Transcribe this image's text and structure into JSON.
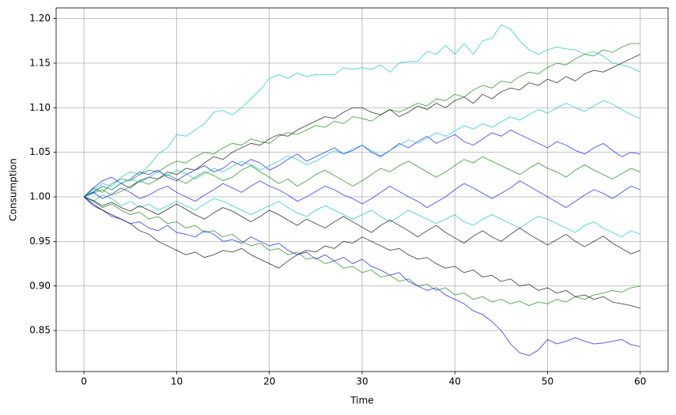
{
  "chart_data": {
    "type": "line",
    "xlabel": "Time",
    "ylabel": "Consumption",
    "xlim": [
      -3,
      63
    ],
    "ylim": [
      0.804,
      1.212
    ],
    "grid": true,
    "alpha": 0.7,
    "xticks": [
      0,
      10,
      20,
      30,
      40,
      50,
      60
    ],
    "yticks": [
      {
        "value": 0.85,
        "label": "0.85"
      },
      {
        "value": 0.9,
        "label": "0.90"
      },
      {
        "value": 0.95,
        "label": "0.95"
      },
      {
        "value": 1.0,
        "label": "1.00"
      },
      {
        "value": 1.05,
        "label": "1.05"
      },
      {
        "value": 1.1,
        "label": "1.10"
      },
      {
        "value": 1.15,
        "label": "1.15"
      },
      {
        "value": 1.2,
        "label": "1.20"
      }
    ],
    "x": [
      0,
      1,
      2,
      3,
      4,
      5,
      6,
      7,
      8,
      9,
      10,
      11,
      12,
      13,
      14,
      15,
      16,
      17,
      18,
      19,
      20,
      21,
      22,
      23,
      24,
      25,
      26,
      27,
      28,
      29,
      30,
      31,
      32,
      33,
      34,
      35,
      36,
      37,
      38,
      39,
      40,
      41,
      42,
      43,
      44,
      45,
      46,
      47,
      48,
      49,
      50,
      51,
      52,
      53,
      54,
      55,
      56,
      57,
      58,
      59,
      60
    ],
    "series": [
      {
        "color": "#00bfbf",
        "values": [
          1.0,
          1.008,
          1.015,
          1.012,
          1.022,
          1.028,
          1.025,
          1.035,
          1.048,
          1.055,
          1.07,
          1.068,
          1.075,
          1.082,
          1.095,
          1.097,
          1.092,
          1.1,
          1.11,
          1.12,
          1.133,
          1.137,
          1.133,
          1.139,
          1.135,
          1.137,
          1.137,
          1.137,
          1.145,
          1.143,
          1.145,
          1.143,
          1.148,
          1.14,
          1.15,
          1.152,
          1.152,
          1.163,
          1.16,
          1.17,
          1.16,
          1.172,
          1.16,
          1.175,
          1.178,
          1.193,
          1.188,
          1.175,
          1.165,
          1.16,
          1.165,
          1.168,
          1.166,
          1.165,
          1.16,
          1.163,
          1.158,
          1.15,
          1.148,
          1.145,
          1.14
        ]
      },
      {
        "color": "#0000ff",
        "values": [
          1.0,
          0.99,
          0.985,
          0.978,
          0.975,
          0.97,
          0.972,
          0.965,
          0.962,
          0.968,
          0.96,
          0.958,
          0.955,
          0.962,
          0.958,
          0.95,
          0.952,
          0.948,
          0.955,
          0.95,
          0.945,
          0.948,
          0.94,
          0.935,
          0.938,
          0.93,
          0.935,
          0.928,
          0.932,
          0.925,
          0.93,
          0.922,
          0.918,
          0.912,
          0.915,
          0.905,
          0.9,
          0.895,
          0.898,
          0.89,
          0.885,
          0.88,
          0.872,
          0.868,
          0.86,
          0.85,
          0.835,
          0.825,
          0.822,
          0.828,
          0.84,
          0.835,
          0.838,
          0.842,
          0.838,
          0.835,
          0.836,
          0.838,
          0.84,
          0.834,
          0.832
        ]
      },
      {
        "color": "#008000",
        "values": [
          1.0,
          1.01,
          1.005,
          1.015,
          1.02,
          1.018,
          1.025,
          1.03,
          1.028,
          1.035,
          1.04,
          1.038,
          1.045,
          1.05,
          1.048,
          1.055,
          1.06,
          1.058,
          1.065,
          1.062,
          1.06,
          1.068,
          1.072,
          1.07,
          1.075,
          1.08,
          1.078,
          1.085,
          1.082,
          1.09,
          1.088,
          1.085,
          1.092,
          1.098,
          1.095,
          1.1,
          1.105,
          1.102,
          1.11,
          1.108,
          1.115,
          1.112,
          1.12,
          1.125,
          1.122,
          1.13,
          1.128,
          1.135,
          1.14,
          1.138,
          1.145,
          1.15,
          1.148,
          1.155,
          1.16,
          1.158,
          1.165,
          1.162,
          1.168,
          1.172,
          1.172
        ]
      },
      {
        "color": "#000000",
        "values": [
          1.0,
          1.005,
          1.012,
          1.008,
          1.015,
          1.01,
          1.018,
          1.022,
          1.02,
          1.028,
          1.025,
          1.032,
          1.03,
          1.038,
          1.045,
          1.042,
          1.05,
          1.055,
          1.06,
          1.058,
          1.065,
          1.07,
          1.068,
          1.075,
          1.08,
          1.085,
          1.09,
          1.088,
          1.095,
          1.1,
          1.1,
          1.095,
          1.092,
          1.098,
          1.09,
          1.095,
          1.102,
          1.098,
          1.105,
          1.1,
          1.108,
          1.112,
          1.105,
          1.115,
          1.11,
          1.118,
          1.122,
          1.12,
          1.128,
          1.125,
          1.132,
          1.128,
          1.135,
          1.13,
          1.138,
          1.142,
          1.14,
          1.145,
          1.15,
          1.155,
          1.16
        ]
      },
      {
        "color": "#008000",
        "values": [
          1.0,
          0.995,
          0.988,
          0.992,
          0.985,
          0.98,
          0.983,
          0.975,
          0.978,
          0.97,
          0.972,
          0.965,
          0.968,
          0.96,
          0.962,
          0.955,
          0.958,
          0.95,
          0.945,
          0.948,
          0.94,
          0.942,
          0.935,
          0.938,
          0.93,
          0.932,
          0.925,
          0.928,
          0.92,
          0.922,
          0.915,
          0.918,
          0.91,
          0.912,
          0.905,
          0.908,
          0.9,
          0.902,
          0.895,
          0.898,
          0.89,
          0.892,
          0.885,
          0.888,
          0.882,
          0.885,
          0.88,
          0.883,
          0.878,
          0.882,
          0.88,
          0.885,
          0.882,
          0.888,
          0.885,
          0.89,
          0.892,
          0.895,
          0.893,
          0.898,
          0.9
        ]
      },
      {
        "color": "#000000",
        "values": [
          1.0,
          0.992,
          0.985,
          0.98,
          0.975,
          0.97,
          0.962,
          0.958,
          0.95,
          0.945,
          0.94,
          0.935,
          0.938,
          0.932,
          0.935,
          0.94,
          0.938,
          0.942,
          0.935,
          0.93,
          0.925,
          0.92,
          0.928,
          0.935,
          0.94,
          0.938,
          0.945,
          0.942,
          0.95,
          0.948,
          0.955,
          0.95,
          0.945,
          0.94,
          0.942,
          0.935,
          0.93,
          0.932,
          0.925,
          0.92,
          0.922,
          0.915,
          0.918,
          0.91,
          0.912,
          0.905,
          0.908,
          0.9,
          0.902,
          0.895,
          0.898,
          0.892,
          0.895,
          0.888,
          0.89,
          0.885,
          0.888,
          0.882,
          0.88,
          0.878,
          0.875
        ]
      },
      {
        "color": "#0000ff",
        "values": [
          1.0,
          1.01,
          1.018,
          1.022,
          1.015,
          1.02,
          1.028,
          1.025,
          1.03,
          1.022,
          1.018,
          1.025,
          1.03,
          1.035,
          1.028,
          1.032,
          1.04,
          1.035,
          1.042,
          1.038,
          1.03,
          1.035,
          1.042,
          1.048,
          1.04,
          1.045,
          1.05,
          1.055,
          1.048,
          1.052,
          1.058,
          1.05,
          1.045,
          1.052,
          1.06,
          1.055,
          1.062,
          1.068,
          1.06,
          1.065,
          1.07,
          1.062,
          1.058,
          1.065,
          1.072,
          1.068,
          1.075,
          1.07,
          1.065,
          1.06,
          1.055,
          1.062,
          1.058,
          1.052,
          1.048,
          1.055,
          1.06,
          1.052,
          1.045,
          1.05,
          1.048
        ]
      },
      {
        "color": "#00bfbf",
        "values": [
          1.0,
          0.995,
          1.002,
          0.998,
          0.99,
          0.995,
          0.988,
          0.992,
          0.985,
          0.99,
          0.995,
          0.99,
          0.985,
          0.992,
          0.998,
          0.995,
          0.99,
          0.985,
          0.98,
          0.985,
          0.99,
          0.995,
          0.988,
          0.982,
          0.978,
          0.985,
          0.99,
          0.985,
          0.98,
          0.975,
          0.98,
          0.985,
          0.978,
          0.972,
          0.978,
          0.985,
          0.98,
          0.975,
          0.97,
          0.975,
          0.98,
          0.972,
          0.968,
          0.975,
          0.98,
          0.975,
          0.97,
          0.965,
          0.972,
          0.978,
          0.975,
          0.97,
          0.965,
          0.96,
          0.968,
          0.972,
          0.965,
          0.96,
          0.955,
          0.962,
          0.958
        ]
      },
      {
        "color": "#0000ff",
        "values": [
          1.0,
          1.005,
          0.998,
          1.003,
          1.01,
          1.005,
          0.998,
          1.002,
          1.008,
          1.012,
          1.005,
          1.0,
          0.995,
          1.002,
          1.008,
          1.015,
          1.01,
          1.005,
          1.012,
          1.018,
          1.012,
          1.008,
          1.002,
          0.995,
          1.0,
          1.006,
          1.012,
          1.008,
          1.002,
          0.998,
          0.992,
          0.998,
          1.005,
          1.012,
          1.006,
          1.0,
          0.995,
          0.988,
          0.994,
          1.0,
          1.008,
          1.015,
          1.01,
          1.004,
          0.998,
          1.004,
          1.01,
          1.018,
          1.012,
          1.006,
          1.0,
          0.994,
          0.988,
          0.995,
          1.002,
          1.008,
          1.004,
          0.998,
          1.005,
          1.012,
          1.008
        ]
      },
      {
        "color": "#008000",
        "values": [
          1.0,
          1.004,
          1.008,
          1.002,
          1.006,
          1.012,
          1.018,
          1.014,
          1.02,
          1.025,
          1.02,
          1.015,
          1.022,
          1.028,
          1.024,
          1.018,
          1.022,
          1.03,
          1.035,
          1.028,
          1.022,
          1.015,
          1.02,
          1.012,
          1.018,
          1.025,
          1.03,
          1.024,
          1.018,
          1.012,
          1.018,
          1.025,
          1.032,
          1.028,
          1.035,
          1.04,
          1.034,
          1.028,
          1.022,
          1.028,
          1.035,
          1.042,
          1.038,
          1.045,
          1.04,
          1.035,
          1.03,
          1.025,
          1.032,
          1.038,
          1.032,
          1.028,
          1.022,
          1.03,
          1.036,
          1.03,
          1.025,
          1.02,
          1.026,
          1.032,
          1.028
        ]
      },
      {
        "color": "#000000",
        "values": [
          1.0,
          0.996,
          0.99,
          0.994,
          0.988,
          0.984,
          0.99,
          0.985,
          0.98,
          0.986,
          0.992,
          0.986,
          0.98,
          0.975,
          0.982,
          0.988,
          0.984,
          0.978,
          0.972,
          0.978,
          0.985,
          0.98,
          0.974,
          0.968,
          0.975,
          0.97,
          0.965,
          0.972,
          0.978,
          0.972,
          0.966,
          0.96,
          0.968,
          0.974,
          0.968,
          0.962,
          0.955,
          0.962,
          0.968,
          0.96,
          0.954,
          0.948,
          0.956,
          0.962,
          0.955,
          0.95,
          0.958,
          0.965,
          0.958,
          0.952,
          0.946,
          0.952,
          0.958,
          0.95,
          0.944,
          0.95,
          0.956,
          0.948,
          0.942,
          0.936,
          0.94
        ]
      },
      {
        "color": "#00bfbf",
        "values": [
          1.0,
          1.006,
          1.012,
          1.008,
          1.015,
          1.02,
          1.016,
          1.022,
          1.028,
          1.024,
          1.03,
          1.026,
          1.02,
          1.026,
          1.032,
          1.028,
          1.034,
          1.04,
          1.036,
          1.03,
          1.035,
          1.04,
          1.046,
          1.042,
          1.036,
          1.04,
          1.046,
          1.052,
          1.048,
          1.054,
          1.058,
          1.052,
          1.046,
          1.052,
          1.058,
          1.064,
          1.06,
          1.066,
          1.072,
          1.068,
          1.074,
          1.08,
          1.076,
          1.082,
          1.078,
          1.084,
          1.09,
          1.086,
          1.092,
          1.098,
          1.094,
          1.1,
          1.105,
          1.1,
          1.096,
          1.102,
          1.108,
          1.104,
          1.098,
          1.092,
          1.088
        ]
      }
    ]
  }
}
